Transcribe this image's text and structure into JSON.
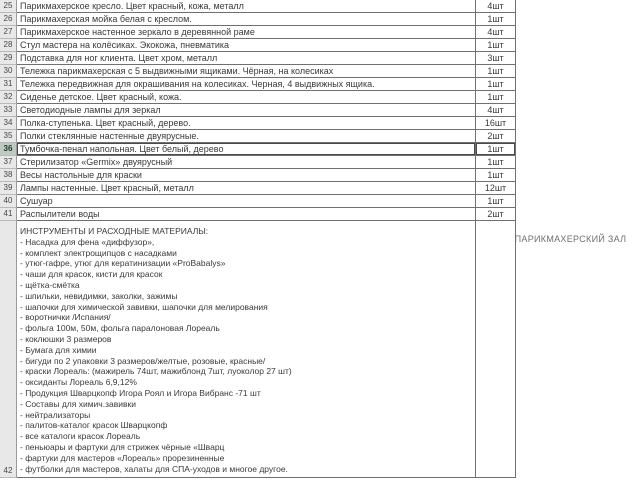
{
  "table": {
    "selected_row": "36",
    "unit_suffix": "шт",
    "rows": [
      {
        "num": "25",
        "desc": "Парикмахерское кресло. Цвет красный, кожа, металл",
        "qty": "4шт"
      },
      {
        "num": "26",
        "desc": "Парикмахерская мойка белая с креслом.",
        "qty": "1шт"
      },
      {
        "num": "27",
        "desc": "Парикмахерское настенное зеркало в деревянной раме",
        "qty": "4шт"
      },
      {
        "num": "28",
        "desc": "Стул мастера на колёсиках. Экокожа, пневматика",
        "qty": "1шт"
      },
      {
        "num": "29",
        "desc": "Подставка для ног клиента. Цвет хром, металл",
        "qty": "3шт"
      },
      {
        "num": "30",
        "desc": "Тележка парикмахерская с 5 выдвижными ящиками. Чёрная, на колесиках",
        "qty": "1шт"
      },
      {
        "num": "31",
        "desc": "Тележка передвижная для окрашивания на колесиках. Черная, 4 выдвижных ящика.",
        "qty": "1шт"
      },
      {
        "num": "32",
        "desc": "Сиденье детское. Цвет красный, кожа.",
        "qty": "1шт"
      },
      {
        "num": "33",
        "desc": "Светодиодные лампы для зеркал",
        "qty": "4шт"
      },
      {
        "num": "34",
        "desc": "Полка-ступенька. Цвет красный, дерево.",
        "qty": "16шт"
      },
      {
        "num": "35",
        "desc": "Полки стеклянные настенные двуярусные.",
        "qty": "2шт"
      },
      {
        "num": "36",
        "desc": "Тумбочка-пенал напольная. Цвет белый, дерево",
        "qty": "1шт"
      },
      {
        "num": "37",
        "desc": "Стерилизатор «Germix» двуярусный",
        "qty": "1шт"
      },
      {
        "num": "38",
        "desc": "Весы настольные для краски",
        "qty": "1шт"
      },
      {
        "num": "39",
        "desc": "Лампы настенные. Цвет красный, металл",
        "qty": "12шт"
      },
      {
        "num": "40",
        "desc": "Сушуар",
        "qty": "1шт"
      },
      {
        "num": "41",
        "desc": "Распылители воды",
        "qty": "2шт"
      }
    ],
    "notes_row": {
      "num": "42",
      "header": "ИНСТРУМЕНТЫ И РАСХОДНЫЕ МАТЕРИАЛЫ:",
      "lines": [
        "- Насадка для фена «диффузор»,",
        "- комплект электрощипцов с насадками",
        "- утюг-гафре, утюг для кератинизации «ProBabalys»",
        "- чаши для красок, кисти для красок",
        "- щётка-смётка",
        "- шпильки, невидимки, заколки, зажимы",
        "- шапочки для химической завивки, шапочки для мелирования",
        "- воротнички /Испания/",
        "- фольга 100м, 50м, фольга паралоновая Лореаль",
        "- коклюшки 3 размеров",
        "- Бумага для химии",
        "- бигуди по 2 упаковки 3 размеров/желтые, розовые, красные/",
        "- краски Лореаль: (мажирель 74шт, мажиблонд 7шт, луоколор 27 шт)",
        "- оксиданты Лореаль 6,9,12%",
        "- Продукция Шварцкопф Игора Роял и Игора Вибранс -71 шт",
        "- Составы для химич.завивки",
        "- нейтрализаторы",
        "- палитов-каталог красок Шварцкопф",
        "- все каталоги красок Лореаль",
        "- пеньюары и фартуки для стрижек чёрные «Шварц",
        "- фартуки для мастеров «Лореаль» прорезиненные",
        "- футболки для мастеров, халаты для СПА-уходов и многое другое."
      ]
    },
    "room_label": "ПАРИКМАХЕРСКИЙ ЗАЛ"
  },
  "colors": {
    "cell_border": "#707070",
    "row_header_bg": "#e8e8e8",
    "selected_header_bg": "#bfc9c2",
    "text": "#3a3a3a",
    "room_label_color": "#6f6f6f"
  }
}
